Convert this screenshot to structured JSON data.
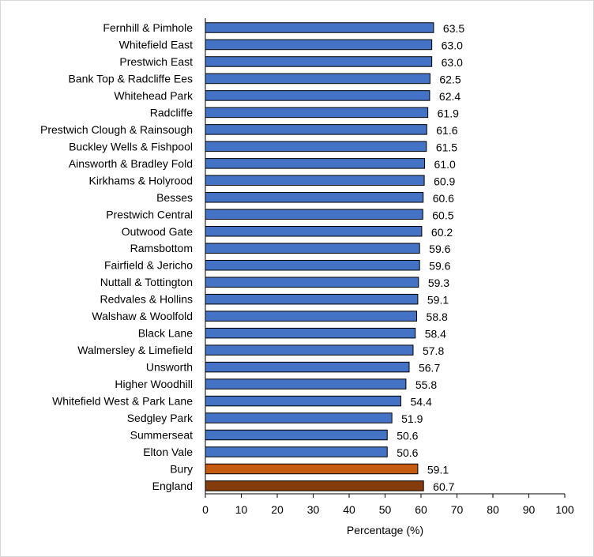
{
  "chart_data": {
    "type": "bar",
    "orientation": "horizontal",
    "categories": [
      "Fernhill & Pimhole",
      "Whitefield East",
      "Prestwich East",
      "Bank Top & Radcliffe Ees",
      "Whitehead Park",
      "Radcliffe",
      "Prestwich Clough & Rainsough",
      "Buckley Wells & Fishpool",
      "Ainsworth & Bradley Fold",
      "Kirkhams & Holyrood",
      "Besses",
      "Prestwich Central",
      "Outwood Gate",
      "Ramsbottom",
      "Fairfield & Jericho",
      "Nuttall & Tottington",
      "Redvales & Hollins",
      "Walshaw & Woolfold",
      "Black Lane",
      "Walmersley & Limefield",
      "Unsworth",
      "Higher Woodhill",
      "Whitefield West & Park Lane",
      "Sedgley Park",
      "Summerseat",
      "Elton Vale",
      "Bury",
      "England"
    ],
    "values": [
      63.5,
      63.0,
      63.0,
      62.5,
      62.4,
      61.9,
      61.6,
      61.5,
      61.0,
      60.9,
      60.6,
      60.5,
      60.2,
      59.6,
      59.6,
      59.3,
      59.1,
      58.8,
      58.4,
      57.8,
      56.7,
      55.8,
      54.4,
      51.9,
      50.6,
      50.6,
      59.1,
      60.7
    ],
    "value_labels": [
      "63.5",
      "63.0",
      "63.0",
      "62.5",
      "62.4",
      "61.9",
      "61.6",
      "61.5",
      "61.0",
      "60.9",
      "60.6",
      "60.5",
      "60.2",
      "59.6",
      "59.6",
      "59.3",
      "59.1",
      "58.8",
      "58.4",
      "57.8",
      "56.7",
      "55.8",
      "54.4",
      "51.9",
      "50.6",
      "50.6",
      "59.1",
      "60.7"
    ],
    "bar_colors": {
      "default": "#4472c4",
      "Bury": "#c55a11",
      "England": "#843c0c"
    },
    "bar_border_color": "#000000",
    "xlabel": "Percentage (%)",
    "ylabel": "",
    "title": "",
    "xlim": [
      0,
      100
    ],
    "xticks": [
      0,
      10,
      20,
      30,
      40,
      50,
      60,
      70,
      80,
      90,
      100
    ],
    "grid": false,
    "legend": "none"
  }
}
